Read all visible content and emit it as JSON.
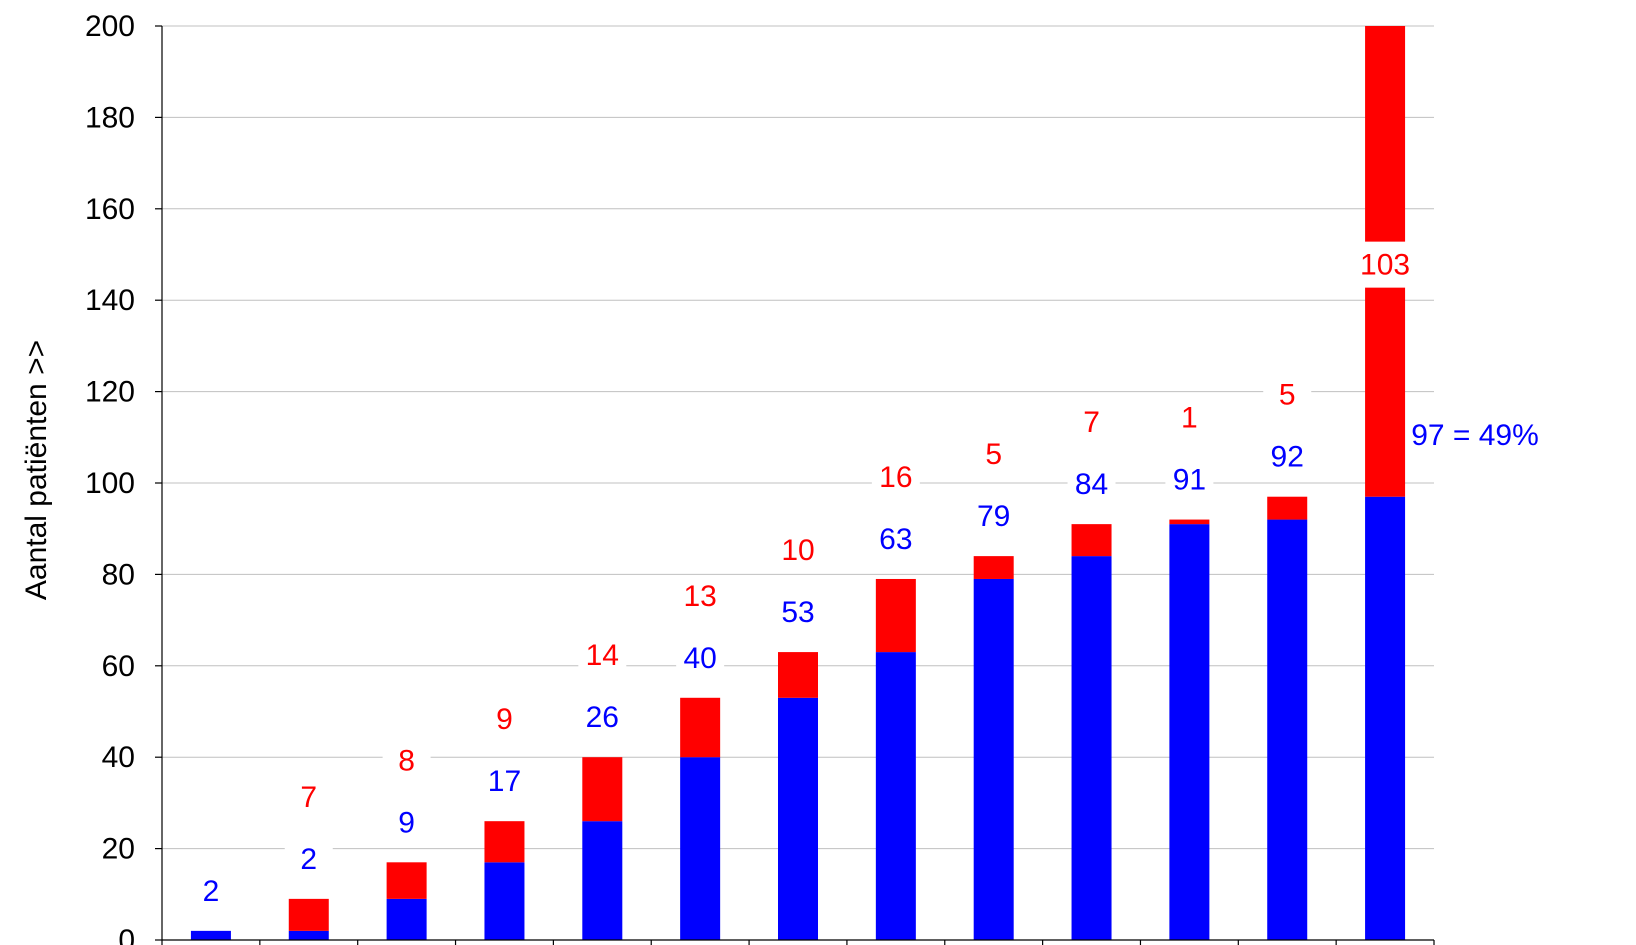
{
  "chart_data": {
    "type": "bar",
    "stacked": true,
    "ylabel": "Aantal patiënten >>",
    "ylim": [
      0,
      200
    ],
    "yticks": [
      0,
      20,
      40,
      60,
      80,
      100,
      120,
      140,
      160,
      180,
      200
    ],
    "grid": "horizontal",
    "colors": {
      "blue_series": "#0000ff",
      "red_series": "#ff0000",
      "gridline": "#c0c0c0"
    },
    "blue_values": [
      2,
      2,
      9,
      17,
      26,
      40,
      53,
      63,
      79,
      84,
      91,
      92,
      97
    ],
    "red_values": [
      0,
      7,
      8,
      9,
      14,
      13,
      10,
      16,
      5,
      7,
      1,
      5,
      103
    ],
    "blue_labels": [
      "2",
      "2",
      "9",
      "17",
      "26",
      "40",
      "53",
      "63",
      "79",
      "84",
      "91",
      "92",
      ""
    ],
    "red_labels": [
      "",
      "7",
      "8",
      "9",
      "14",
      "13",
      "10",
      "16",
      "5",
      "7",
      "1",
      "5",
      "103"
    ],
    "annotation": "97 = 49%"
  }
}
